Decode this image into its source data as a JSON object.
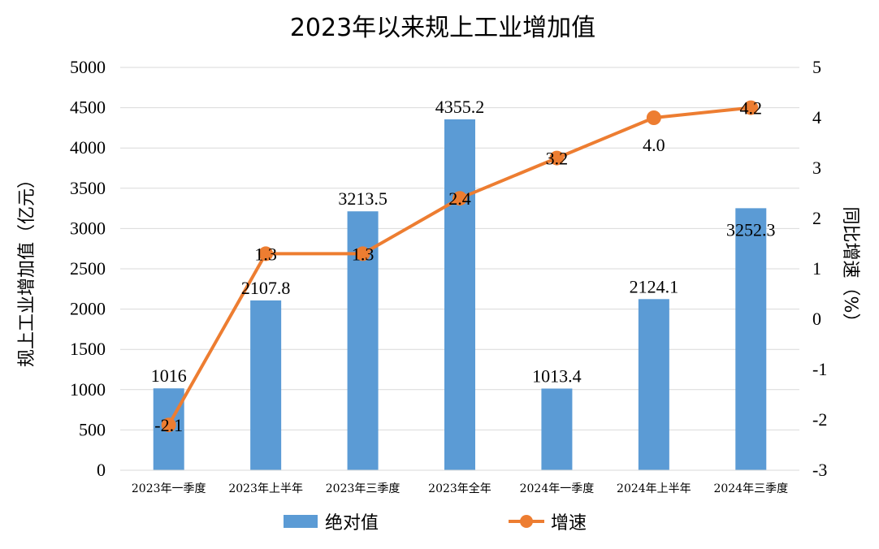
{
  "chart_data": {
    "type": "bar",
    "title": "2023年以来规上工业增加值",
    "categories": [
      "2023年一季度",
      "2023年上半年",
      "2023年三季度",
      "2023年全年",
      "2024年一季度",
      "2024年上半年",
      "2024年三季度"
    ],
    "series": [
      {
        "name": "绝对值",
        "type": "bar",
        "axis": "left",
        "color": "#5B9BD5",
        "values": [
          1016,
          2107.8,
          3213.5,
          4355.2,
          1013.4,
          2124.1,
          3252.3
        ],
        "labels": [
          "1016",
          "2107.8",
          "3213.5",
          "4355.2",
          "1013.4",
          "2124.1",
          "3252.3"
        ]
      },
      {
        "name": "增速",
        "type": "line",
        "axis": "right",
        "color": "#ED7D31",
        "values": [
          -2.1,
          1.3,
          1.3,
          2.4,
          3.2,
          4.0,
          4.2
        ],
        "labels": [
          "-2.1",
          "1.3",
          "1.3",
          "2.4",
          "3.2",
          "4.0",
          "4.2"
        ]
      }
    ],
    "ylabel": "规上工业增加值（亿元）",
    "ylabel_right": "同比增速（%）",
    "ylim": [
      0,
      5000
    ],
    "yticks": [
      "0",
      "500",
      "1000",
      "1500",
      "2000",
      "2500",
      "3000",
      "3500",
      "4000",
      "4500",
      "5000"
    ],
    "ylim_right": [
      -3,
      5
    ],
    "yticks_right": [
      "-3",
      "-2",
      "-1",
      "0",
      "1",
      "2",
      "3",
      "4",
      "5"
    ],
    "grid": true,
    "legend_position": "bottom"
  }
}
